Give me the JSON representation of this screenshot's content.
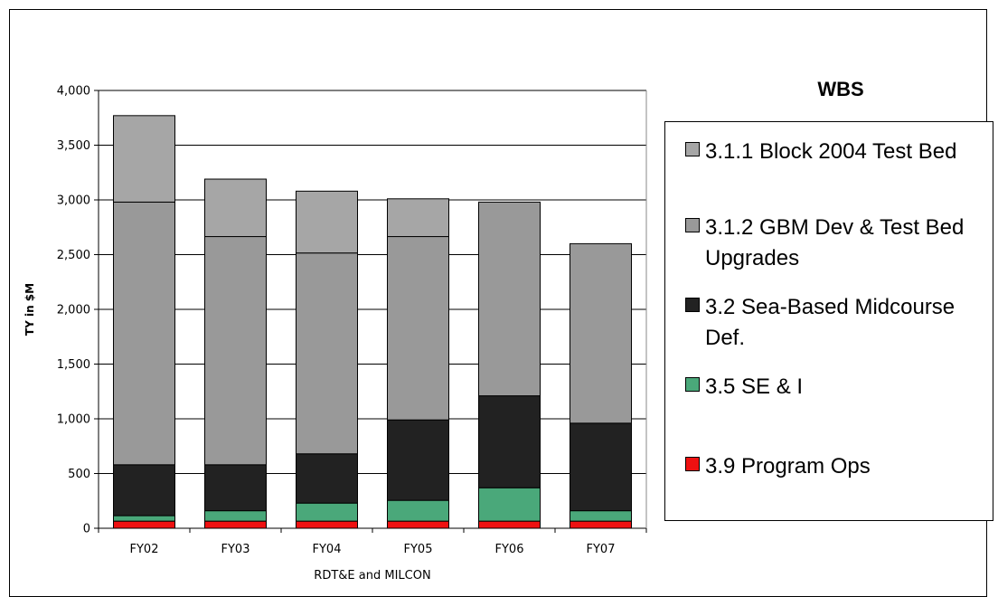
{
  "legend": {
    "title": "WBS",
    "items": [
      {
        "label": "3.1.1 Block 2004 Test Bed",
        "color": "#a6a6a6"
      },
      {
        "label": "3.1.2 GBM Dev & Test Bed Upgrades",
        "color": "#999999"
      },
      {
        "label": "3.2 Sea-Based Midcourse Def.",
        "color": "#222222"
      },
      {
        "label": "3.5 SE & I",
        "color": "#4aa87a"
      },
      {
        "label": "3.9 Program Ops",
        "color": "#ee1111"
      }
    ]
  },
  "chart_data": {
    "type": "bar",
    "stacked": true,
    "title": "",
    "xlabel": "RDT&E and MILCON",
    "ylabel": "TY in $M",
    "categories": [
      "FY02",
      "FY03",
      "FY04",
      "FY05",
      "FY06",
      "FY07"
    ],
    "ylim": [
      0,
      4000
    ],
    "yticks": [
      0,
      500,
      1000,
      1500,
      2000,
      2500,
      3000,
      3500,
      4000
    ],
    "ytick_labels": [
      "0",
      "500",
      "1,000",
      "1,500",
      "2,000",
      "2,500",
      "3,000",
      "3,500",
      "4,000"
    ],
    "grid": true,
    "legend_position": "right",
    "series": [
      {
        "name": "3.9 Program Ops",
        "color": "#ee1111",
        "values": [
          65,
          65,
          65,
          65,
          65,
          65
        ]
      },
      {
        "name": "3.5 SE & I",
        "color": "#4aa87a",
        "values": [
          50,
          95,
          165,
          190,
          305,
          95
        ]
      },
      {
        "name": "3.2 Sea-Based Midcourse Def.",
        "color": "#222222",
        "values": [
          465,
          420,
          450,
          735,
          840,
          800
        ]
      },
      {
        "name": "3.1.2 GBM Dev & Test Bed Upgrades",
        "color": "#999999",
        "values": [
          2400,
          2085,
          1835,
          1675,
          1770,
          1640
        ]
      },
      {
        "name": "3.1.1 Block 2004 Test Bed",
        "color": "#a6a6a6",
        "values": [
          790,
          525,
          565,
          345,
          0,
          0
        ]
      }
    ]
  }
}
